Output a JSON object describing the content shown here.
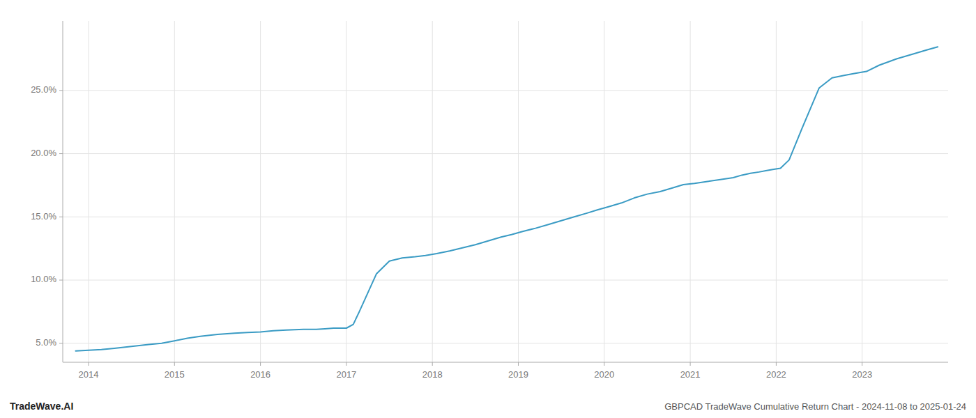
{
  "chart_data": {
    "type": "line",
    "x": [
      2013.85,
      2014.0,
      2014.15,
      2014.3,
      2014.5,
      2014.7,
      2014.85,
      2015.0,
      2015.15,
      2015.3,
      2015.5,
      2015.7,
      2015.85,
      2016.0,
      2016.15,
      2016.3,
      2016.5,
      2016.65,
      2016.75,
      2016.85,
      2016.92,
      2017.0,
      2017.08,
      2017.15,
      2017.25,
      2017.35,
      2017.5,
      2017.65,
      2017.8,
      2017.92,
      2018.05,
      2018.2,
      2018.35,
      2018.5,
      2018.65,
      2018.8,
      2018.92,
      2019.05,
      2019.2,
      2019.35,
      2019.5,
      2019.65,
      2019.8,
      2019.92,
      2020.05,
      2020.2,
      2020.35,
      2020.5,
      2020.65,
      2020.8,
      2020.92,
      2021.05,
      2021.2,
      2021.35,
      2021.5,
      2021.6,
      2021.7,
      2021.8,
      2021.88,
      2021.96,
      2022.05,
      2022.15,
      2022.3,
      2022.5,
      2022.65,
      2022.8,
      2022.92,
      2023.05,
      2023.2,
      2023.4,
      2023.6,
      2023.75,
      2023.88
    ],
    "values": [
      4.4,
      4.45,
      4.5,
      4.6,
      4.75,
      4.9,
      5.0,
      5.2,
      5.4,
      5.55,
      5.7,
      5.8,
      5.85,
      5.9,
      6.0,
      6.05,
      6.1,
      6.1,
      6.15,
      6.2,
      6.2,
      6.2,
      6.5,
      7.5,
      9.0,
      10.5,
      11.5,
      11.75,
      11.85,
      11.95,
      12.1,
      12.3,
      12.55,
      12.8,
      13.1,
      13.4,
      13.6,
      13.85,
      14.1,
      14.4,
      14.7,
      15.0,
      15.3,
      15.55,
      15.8,
      16.1,
      16.5,
      16.8,
      17.0,
      17.3,
      17.55,
      17.65,
      17.8,
      17.95,
      18.1,
      18.3,
      18.45,
      18.55,
      18.65,
      18.75,
      18.85,
      19.5,
      22.0,
      25.2,
      26.0,
      26.2,
      26.35,
      26.5,
      27.0,
      27.5,
      27.9,
      28.2,
      28.45
    ],
    "color": "#3a9bc4",
    "xlim": [
      2013.7,
      2024.0
    ],
    "xticks": [
      2014,
      2015,
      2016,
      2017,
      2018,
      2019,
      2020,
      2021,
      2022,
      2023
    ],
    "ylim": [
      3.5,
      30.5
    ],
    "yticks": [
      {
        "value": 5.0,
        "label": "5.0%"
      },
      {
        "value": 10.0,
        "label": "10.0%"
      },
      {
        "value": 15.0,
        "label": "15.0%"
      },
      {
        "value": 20.0,
        "label": "20.0%"
      },
      {
        "value": 25.0,
        "label": "25.0%"
      }
    ],
    "grid": true,
    "annotations": [
      "TradeWave.AI",
      "GBPCAD TradeWave Cumulative Return Chart - 2024-11-08 to 2025-01-24"
    ]
  }
}
